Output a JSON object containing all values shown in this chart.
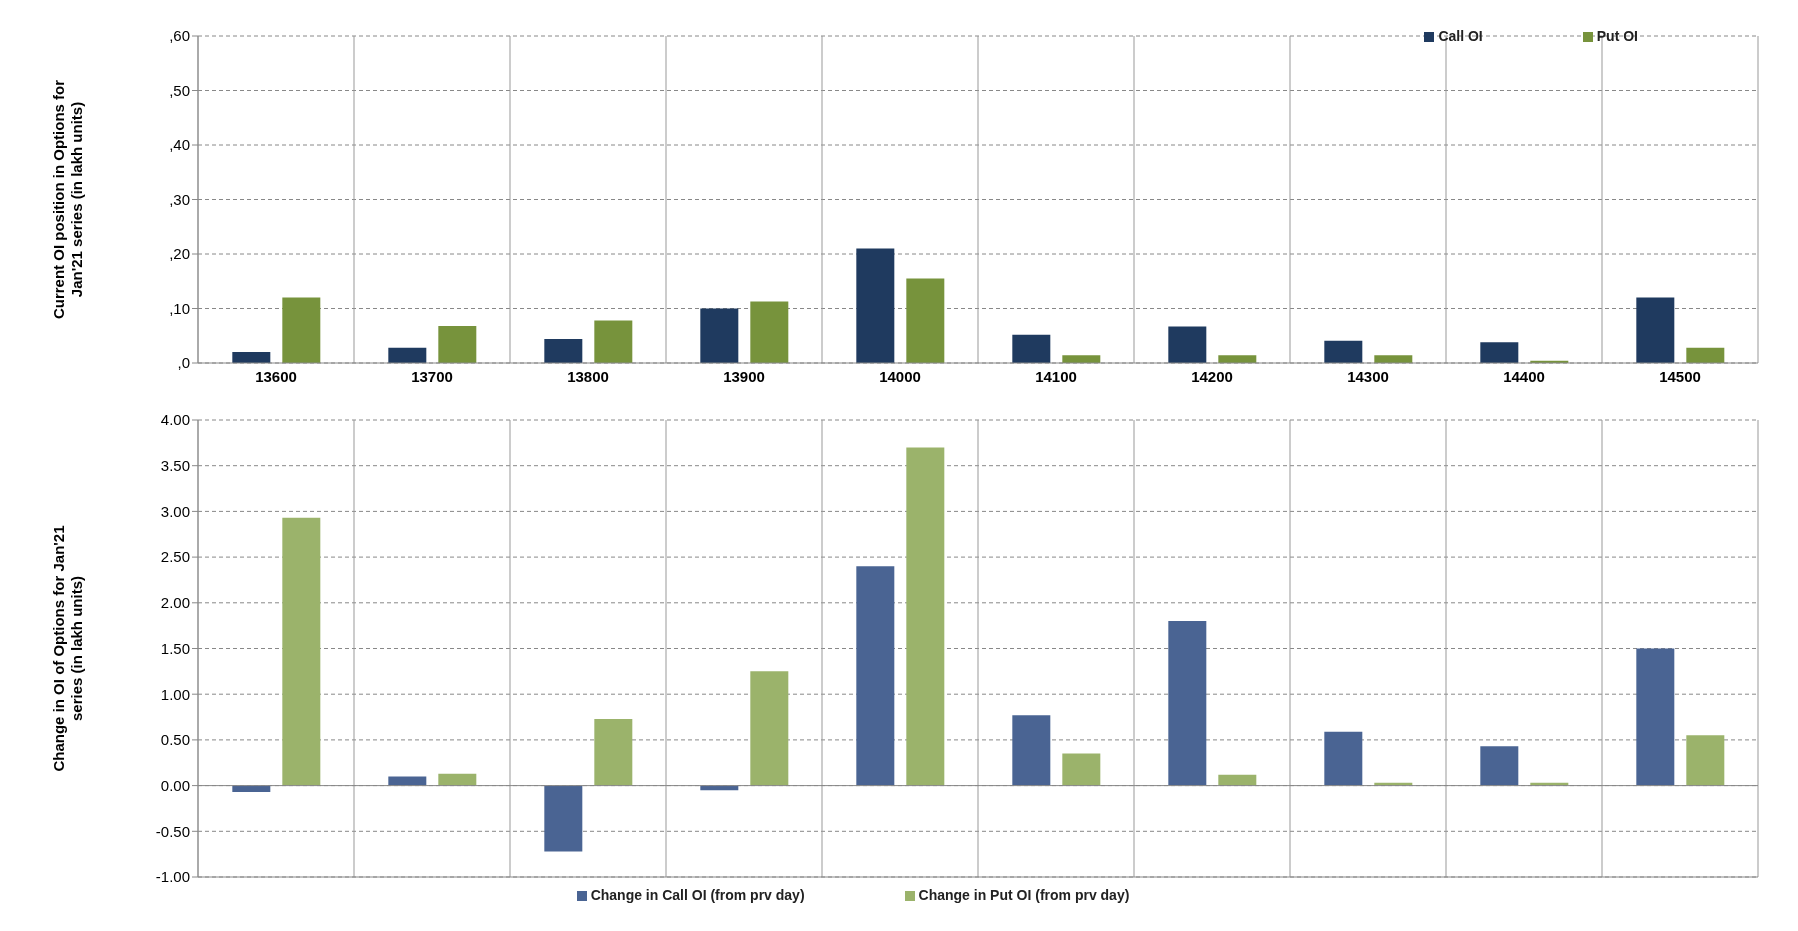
{
  "chart_data": [
    {
      "type": "bar",
      "ylabel": "Current OI position in Options for Jan'21 series (in lakh units)",
      "categories": [
        "13600",
        "13700",
        "13800",
        "13900",
        "14000",
        "14100",
        "14200",
        "14300",
        "14400",
        "14500"
      ],
      "series": [
        {
          "name": "Call OI",
          "color": "#1f3a5f",
          "values": [
            2,
            2.8,
            4.4,
            10,
            21,
            5.2,
            6.7,
            4.1,
            3.8,
            12
          ]
        },
        {
          "name": "Put OI",
          "color": "#77933c",
          "values": [
            12,
            6.8,
            7.8,
            11.3,
            15.5,
            1.4,
            1.4,
            1.4,
            0.4,
            2.8
          ]
        }
      ],
      "ylim": [
        0,
        60
      ],
      "yticks": [
        {
          "value": 0,
          "label": ",0"
        },
        {
          "value": 10,
          "label": ",10"
        },
        {
          "value": 20,
          "label": ",20"
        },
        {
          "value": 30,
          "label": ",30"
        },
        {
          "value": 40,
          "label": ",40"
        },
        {
          "value": 50,
          "label": ",50"
        },
        {
          "value": 60,
          "label": ",60"
        }
      ],
      "grid": true,
      "legend": "top right"
    },
    {
      "type": "bar",
      "ylabel": "Change in OI of Options for Jan'21 series (in lakh units)",
      "categories": [
        null,
        null,
        null,
        null,
        null,
        null,
        null,
        null,
        null,
        null
      ],
      "series": [
        {
          "name": "Change in Call OI (from prv day)",
          "color": "#4a6493",
          "values": [
            -0.07,
            0.1,
            -0.72,
            -0.05,
            2.4,
            0.77,
            1.8,
            0.59,
            0.43,
            1.5
          ]
        },
        {
          "name": "Change in Put OI (from prv day)",
          "color": "#9bb36b",
          "values": [
            2.93,
            0.13,
            0.73,
            1.25,
            3.7,
            0.35,
            0.12,
            0.03,
            0.03,
            0.55
          ]
        }
      ],
      "ylim": [
        -1,
        4
      ],
      "yticks": [
        {
          "value": -1,
          "label": "-1.00"
        },
        {
          "value": -0.5,
          "label": "-0.50"
        },
        {
          "value": 0,
          "label": "0.00"
        },
        {
          "value": 0.5,
          "label": "0.50"
        },
        {
          "value": 1,
          "label": "1.00"
        },
        {
          "value": 1.5,
          "label": "1.50"
        },
        {
          "value": 2,
          "label": "2.00"
        },
        {
          "value": 2.5,
          "label": "2.50"
        },
        {
          "value": 3,
          "label": "3.00"
        },
        {
          "value": 3.5,
          "label": "3.50"
        },
        {
          "value": 4,
          "label": "4.00"
        }
      ],
      "grid": true,
      "legend": "bottom"
    }
  ]
}
